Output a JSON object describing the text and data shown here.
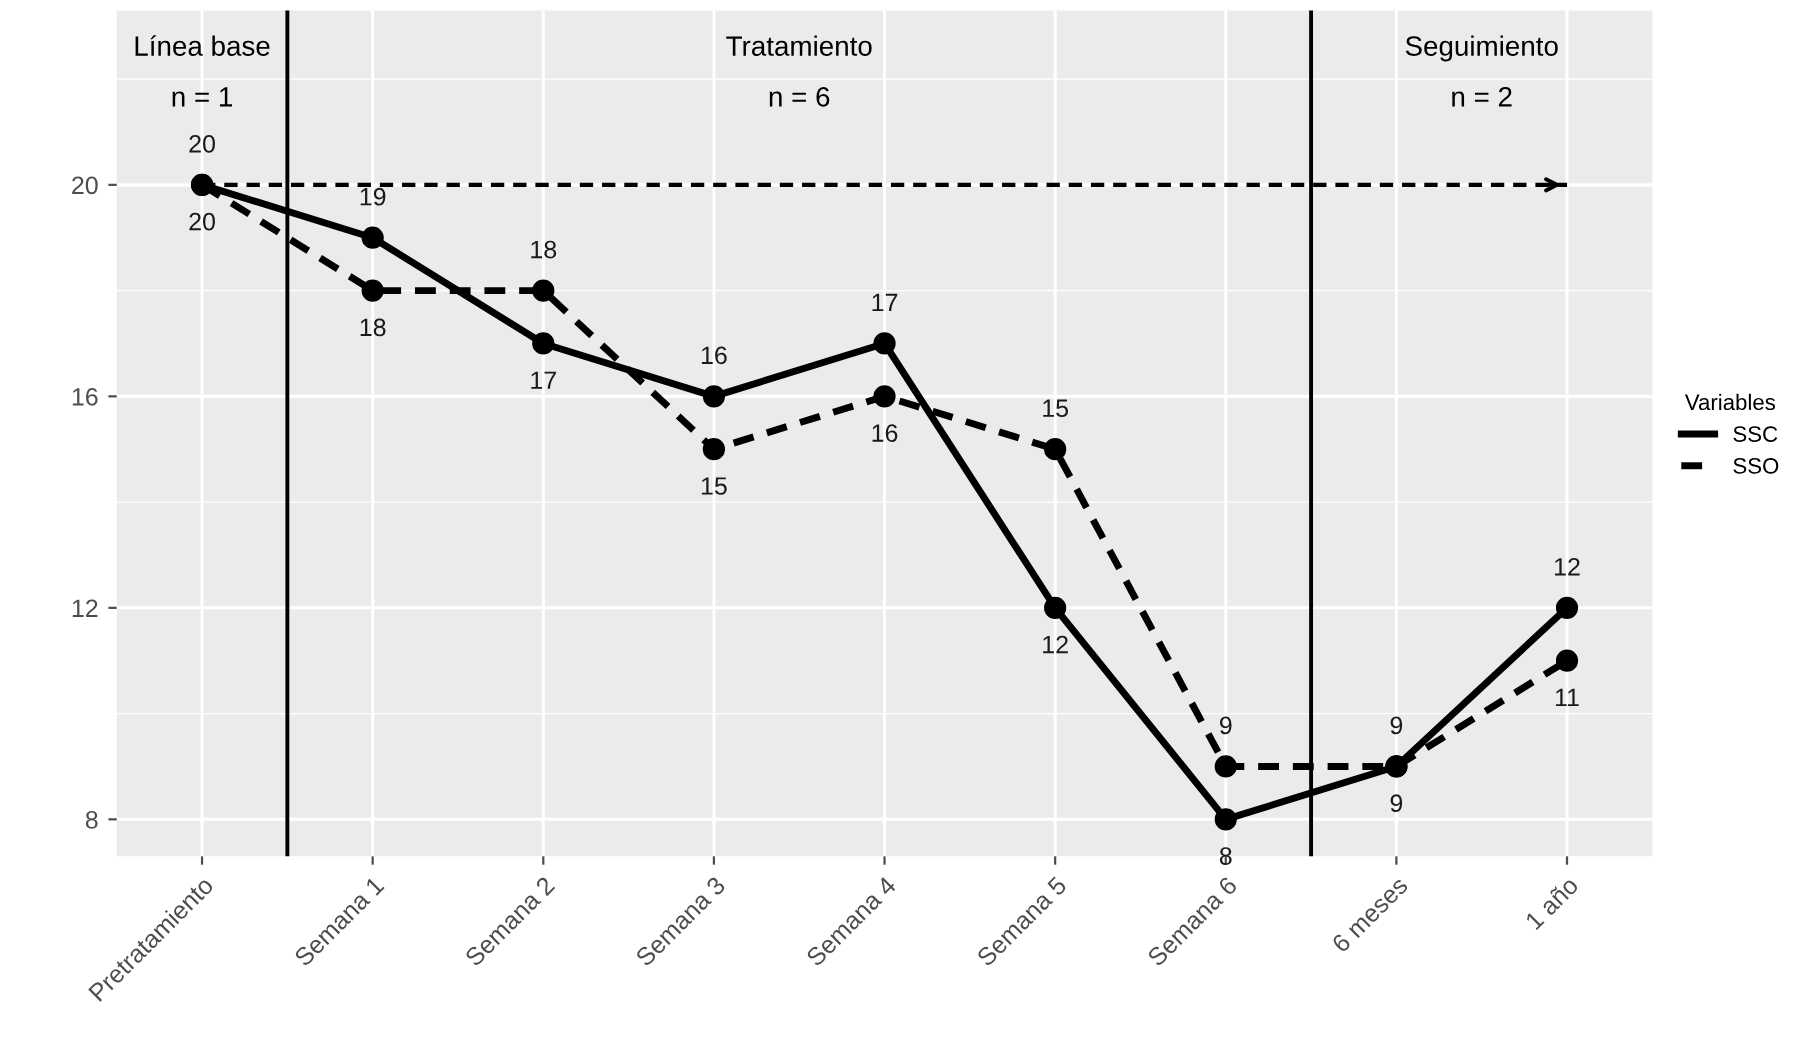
{
  "chart_data": {
    "type": "line",
    "categories": [
      "Pretratamiento",
      "Semana 1",
      "Semana 2",
      "Semana 3",
      "Semana 4",
      "Semana 5",
      "Semana 6",
      "6 meses",
      "1 año"
    ],
    "series": [
      {
        "name": "SSC",
        "color": "#000000",
        "values": [
          20,
          19,
          17,
          16,
          17,
          12,
          8,
          9,
          12
        ],
        "line_style": "solid"
      },
      {
        "name": "SSO",
        "color": "#000000",
        "values": [
          20,
          18,
          18,
          15,
          16,
          15,
          9,
          9,
          11
        ],
        "line_style": "dashed"
      }
    ],
    "ylim": [
      7.3,
      23.3
    ],
    "yticks": [
      8,
      12,
      16,
      20
    ],
    "ref_lines": [
      {
        "axis": "y",
        "value": 20,
        "line_style": "dashed",
        "color": "#000000"
      }
    ],
    "annotations": [
      "Línea base",
      "n = 1",
      "Tratamiento",
      "n = 6",
      "Seguimiento",
      "n = 2"
    ],
    "legend_title": "Variables",
    "legend": "right",
    "grid": true,
    "marker": "circle",
    "data_labels": true
  }
}
